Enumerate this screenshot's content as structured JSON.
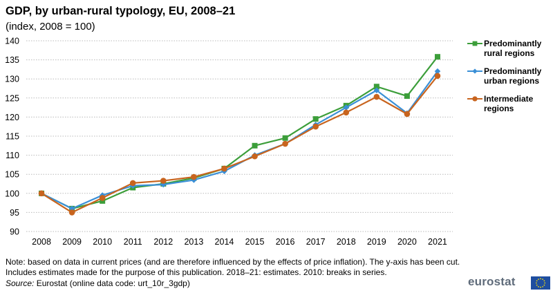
{
  "header": {
    "title": "GDP, by urban-rural typology, EU, 2008–21",
    "subtitle": "(index, 2008 = 100)"
  },
  "chart_data": {
    "type": "line",
    "title": "GDP, by urban-rural typology, EU, 2008–21",
    "subtitle": "(index, 2008 = 100)",
    "xlabel": "",
    "ylabel": "",
    "categories": [
      "2008",
      "2009",
      "2010",
      "2011",
      "2012",
      "2013",
      "2014",
      "2015",
      "2016",
      "2017",
      "2018",
      "2019",
      "2020",
      "2021"
    ],
    "ylim": [
      90,
      140
    ],
    "yticks": [
      90,
      95,
      100,
      105,
      110,
      115,
      120,
      125,
      130,
      135,
      140
    ],
    "grid": "horizontal dotted",
    "legend_position": "right",
    "series": [
      {
        "name": "Predominantly rural regions",
        "color": "#3c9e3a",
        "marker": "square",
        "values": [
          100.0,
          96.0,
          98.0,
          101.5,
          102.5,
          104.0,
          106.5,
          112.5,
          114.5,
          119.5,
          123.0,
          128.0,
          125.5,
          135.8
        ]
      },
      {
        "name": "Predominantly urban regions",
        "color": "#3a8fd6",
        "marker": "diamond",
        "values": [
          100.0,
          96.0,
          99.5,
          102.0,
          102.3,
          103.5,
          105.8,
          110.0,
          113.0,
          118.0,
          122.5,
          127.0,
          121.0,
          132.0
        ]
      },
      {
        "name": "Intermediate regions",
        "color": "#c8641e",
        "marker": "circle",
        "values": [
          100.0,
          95.0,
          98.8,
          102.7,
          103.3,
          104.3,
          106.5,
          109.7,
          113.0,
          117.5,
          121.2,
          125.3,
          120.8,
          130.8
        ]
      }
    ]
  },
  "legend": {
    "items": [
      {
        "label": "Predominantly rural regions",
        "color": "#3c9e3a",
        "marker": "square"
      },
      {
        "label": "Predominantly urban regions",
        "color": "#3a8fd6",
        "marker": "diamond"
      },
      {
        "label": "Intermediate regions",
        "color": "#c8641e",
        "marker": "circle"
      }
    ]
  },
  "footer": {
    "note": "Note: based on data in current prices (and are therefore influenced by the effects of price inflation). The y-axis has been cut. Includes estimates made for the purpose of this publication. 2018–21: estimates. 2010: breaks in series.",
    "source_label": "Source:",
    "source_text": " Eurostat (online data code: urt_10r_3gdp)"
  },
  "logo": {
    "text": "eurostat",
    "icon": "eu-flag-icon"
  }
}
